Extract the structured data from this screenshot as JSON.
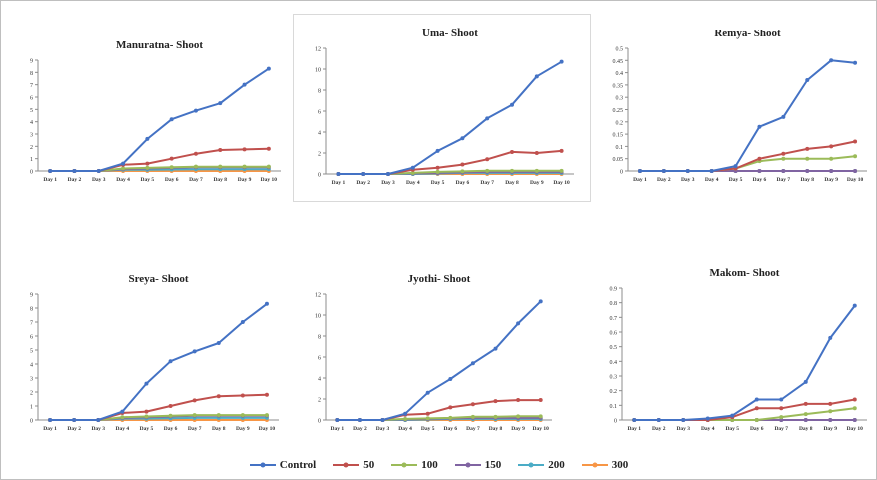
{
  "figure": {
    "legend": [
      {
        "label": "Control",
        "color": "#4472c4"
      },
      {
        "label": "50",
        "color": "#c0504d"
      },
      {
        "label": "100",
        "color": "#9bbb59"
      },
      {
        "label": "150",
        "color": "#8064a2"
      },
      {
        "label": "200",
        "color": "#4bacc6"
      },
      {
        "label": "300",
        "color": "#f79646"
      }
    ]
  },
  "chart_data": [
    {
      "type": "line",
      "title": "Manuratna- Shoot",
      "x": [
        "Day 1",
        "Day 2",
        "Day 3",
        "Day 4",
        "Day 5",
        "Day 6",
        "Day 7",
        "Day 8",
        "Day 9",
        "Day 10"
      ],
      "yticks": [
        "0",
        "1",
        "2",
        "3",
        "4",
        "5",
        "6",
        "7",
        "8",
        "9"
      ],
      "ylim": [
        0,
        9
      ],
      "series": [
        {
          "name": "Control",
          "color": "#4472c4",
          "values": [
            0,
            0,
            0,
            0.6,
            2.6,
            4.2,
            4.9,
            5.5,
            7.0,
            8.3
          ]
        },
        {
          "name": "50",
          "color": "#c0504d",
          "values": [
            0,
            0,
            0,
            0.5,
            0.6,
            1.0,
            1.4,
            1.7,
            1.75,
            1.8
          ]
        },
        {
          "name": "100",
          "color": "#9bbb59",
          "values": [
            0,
            0,
            0,
            0.2,
            0.25,
            0.3,
            0.35,
            0.35,
            0.35,
            0.35
          ]
        },
        {
          "name": "150",
          "color": "#8064a2",
          "values": [
            0,
            0,
            0,
            0.15,
            0.2,
            0.25,
            0.3,
            0.3,
            0.3,
            0.3
          ]
        },
        {
          "name": "200",
          "color": "#4bacc6",
          "values": [
            0,
            0,
            0,
            0.1,
            0.1,
            0.12,
            0.15,
            0.15,
            0.15,
            0.15
          ]
        },
        {
          "name": "300",
          "color": "#f79646",
          "values": [
            0,
            0,
            0,
            0,
            0,
            0,
            0,
            0,
            0,
            0
          ]
        }
      ]
    },
    {
      "type": "line",
      "title": "Uma- Shoot",
      "x": [
        "Day 1",
        "Day 2",
        "Day 3",
        "Day 4",
        "Day 5",
        "Day 6",
        "Day 7",
        "Day 8",
        "Day 9",
        "Day 10"
      ],
      "yticks": [
        "0",
        "2",
        "4",
        "6",
        "8",
        "10",
        "12"
      ],
      "ylim": [
        0,
        12
      ],
      "series": [
        {
          "name": "Control",
          "color": "#4472c4",
          "values": [
            0,
            0,
            0,
            0.6,
            2.2,
            3.4,
            5.3,
            6.6,
            9.3,
            10.7
          ]
        },
        {
          "name": "50",
          "color": "#c0504d",
          "values": [
            0,
            0,
            0,
            0.4,
            0.6,
            0.9,
            1.4,
            2.1,
            2.0,
            2.2
          ]
        },
        {
          "name": "100",
          "color": "#9bbb59",
          "values": [
            0,
            0,
            0,
            0.1,
            0.2,
            0.25,
            0.3,
            0.3,
            0.3,
            0.3
          ]
        },
        {
          "name": "150",
          "color": "#8064a2",
          "values": [
            0,
            0,
            0,
            0.05,
            0.1,
            0.15,
            0.2,
            0.2,
            0.2,
            0.2
          ]
        },
        {
          "name": "200",
          "color": "#4bacc6",
          "values": [
            0,
            0,
            0,
            0,
            0.05,
            0.1,
            0.1,
            0.1,
            0.1,
            0.1
          ]
        },
        {
          "name": "300",
          "color": "#f79646",
          "values": [
            0,
            0,
            0,
            0,
            0,
            0,
            0,
            0,
            0,
            0
          ]
        }
      ]
    },
    {
      "type": "line",
      "title": "Remya- Shoot",
      "x": [
        "Day 1",
        "Day 2",
        "Day 3",
        "Day 4",
        "Day 5",
        "Day 6",
        "Day 7",
        "Day 8",
        "Day 9",
        "Day 10"
      ],
      "yticks": [
        "0",
        "0.05",
        "0.1",
        "0.15",
        "0.2",
        "0.25",
        "0.3",
        "0.35",
        "0.4",
        "0.45",
        "0.5"
      ],
      "ylim": [
        0,
        0.5
      ],
      "series": [
        {
          "name": "Control",
          "color": "#4472c4",
          "values": [
            0,
            0,
            0,
            0,
            0.02,
            0.18,
            0.22,
            0.37,
            0.45,
            0.44
          ]
        },
        {
          "name": "50",
          "color": "#c0504d",
          "values": [
            0,
            0,
            0,
            0,
            0.01,
            0.05,
            0.07,
            0.09,
            0.1,
            0.12
          ]
        },
        {
          "name": "100",
          "color": "#9bbb59",
          "values": [
            0,
            0,
            0,
            0,
            0.01,
            0.04,
            0.05,
            0.05,
            0.05,
            0.06
          ]
        },
        {
          "name": "150",
          "color": "#8064a2",
          "values": [
            0,
            0,
            0,
            0,
            0,
            0,
            0,
            0,
            0,
            0
          ]
        },
        {
          "name": "200",
          "color": "#4bacc6",
          "values": [
            0,
            0,
            0,
            0,
            0,
            0,
            0,
            0,
            0,
            0
          ]
        },
        {
          "name": "300",
          "color": "#f79646",
          "values": [
            0,
            0,
            0,
            0,
            0,
            0,
            0,
            0,
            0,
            0
          ]
        }
      ]
    },
    {
      "type": "line",
      "title": "Sreya- Shoot",
      "x": [
        "Day 1",
        "Day 2",
        "Day 3",
        "Day 4",
        "Day 5",
        "Day 6",
        "Day 7",
        "Day 8",
        "Day 9",
        "Day 10"
      ],
      "yticks": [
        "0",
        "1",
        "2",
        "3",
        "4",
        "5",
        "6",
        "7",
        "8",
        "9"
      ],
      "ylim": [
        0,
        9
      ],
      "series": [
        {
          "name": "Control",
          "color": "#4472c4",
          "values": [
            0,
            0,
            0,
            0.6,
            2.6,
            4.2,
            4.9,
            5.5,
            7.0,
            8.3
          ]
        },
        {
          "name": "50",
          "color": "#c0504d",
          "values": [
            0,
            0,
            0,
            0.5,
            0.6,
            1.0,
            1.4,
            1.7,
            1.75,
            1.8
          ]
        },
        {
          "name": "100",
          "color": "#9bbb59",
          "values": [
            0,
            0,
            0,
            0.2,
            0.25,
            0.3,
            0.35,
            0.35,
            0.35,
            0.35
          ]
        },
        {
          "name": "150",
          "color": "#8064a2",
          "values": [
            0,
            0,
            0,
            0.15,
            0.2,
            0.25,
            0.3,
            0.3,
            0.3,
            0.3
          ]
        },
        {
          "name": "200",
          "color": "#4bacc6",
          "values": [
            0,
            0,
            0,
            0.1,
            0.1,
            0.12,
            0.15,
            0.15,
            0.15,
            0.15
          ]
        },
        {
          "name": "300",
          "color": "#f79646",
          "values": [
            0,
            0,
            0,
            0,
            0,
            0,
            0,
            0,
            0,
            0
          ]
        }
      ]
    },
    {
      "type": "line",
      "title": "Jyothi- Shoot",
      "x": [
        "Day 1",
        "Day 2",
        "Day 3",
        "Day 4",
        "Day 5",
        "Day 6",
        "Day 7",
        "Day 8",
        "Day 9",
        "Day 10"
      ],
      "yticks": [
        "0",
        "2",
        "4",
        "6",
        "8",
        "10",
        "12"
      ],
      "ylim": [
        0,
        12
      ],
      "series": [
        {
          "name": "Control",
          "color": "#4472c4",
          "values": [
            0,
            0,
            0,
            0.6,
            2.6,
            3.9,
            5.4,
            6.8,
            9.2,
            11.3
          ]
        },
        {
          "name": "50",
          "color": "#c0504d",
          "values": [
            0,
            0,
            0,
            0.5,
            0.6,
            1.2,
            1.5,
            1.8,
            1.9,
            1.9
          ]
        },
        {
          "name": "100",
          "color": "#9bbb59",
          "values": [
            0,
            0,
            0,
            0.1,
            0.15,
            0.2,
            0.3,
            0.3,
            0.35,
            0.35
          ]
        },
        {
          "name": "150",
          "color": "#8064a2",
          "values": [
            0,
            0,
            0,
            0.05,
            0.1,
            0.15,
            0.2,
            0.2,
            0.2,
            0.2
          ]
        },
        {
          "name": "200",
          "color": "#4bacc6",
          "values": [
            0,
            0,
            0,
            0,
            0.05,
            0.1,
            0.1,
            0.1,
            0.1,
            0.1
          ]
        },
        {
          "name": "300",
          "color": "#f79646",
          "values": [
            0,
            0,
            0,
            0,
            0,
            0,
            0,
            0,
            0,
            0
          ]
        }
      ]
    },
    {
      "type": "line",
      "title": "Makom- Shoot",
      "x": [
        "Day 1",
        "Day 2",
        "Day 3",
        "Day 4",
        "Day 5",
        "Day 6",
        "Day 7",
        "Day 8",
        "Day 9",
        "Day 10"
      ],
      "yticks": [
        "0",
        "0.1",
        "0.2",
        "0.3",
        "0.4",
        "0.5",
        "0.6",
        "0.7",
        "0.8",
        "0.9"
      ],
      "ylim": [
        0,
        0.9
      ],
      "series": [
        {
          "name": "Control",
          "color": "#4472c4",
          "values": [
            0,
            0,
            0,
            0.01,
            0.03,
            0.14,
            0.14,
            0.26,
            0.56,
            0.78
          ]
        },
        {
          "name": "50",
          "color": "#c0504d",
          "values": [
            0,
            0,
            0,
            0,
            0.02,
            0.08,
            0.08,
            0.11,
            0.11,
            0.14
          ]
        },
        {
          "name": "100",
          "color": "#9bbb59",
          "values": [
            0,
            0,
            0,
            0,
            0,
            0,
            0.02,
            0.04,
            0.06,
            0.08
          ]
        },
        {
          "name": "150",
          "color": "#8064a2",
          "values": [
            0,
            0,
            0,
            0,
            0,
            0,
            0,
            0,
            0,
            0
          ]
        },
        {
          "name": "200",
          "color": "#4bacc6",
          "values": [
            0,
            0,
            0,
            0,
            0,
            0,
            0,
            0,
            0,
            0
          ]
        },
        {
          "name": "300",
          "color": "#f79646",
          "values": [
            0,
            0,
            0,
            0,
            0,
            0,
            0,
            0,
            0,
            0
          ]
        }
      ]
    }
  ]
}
